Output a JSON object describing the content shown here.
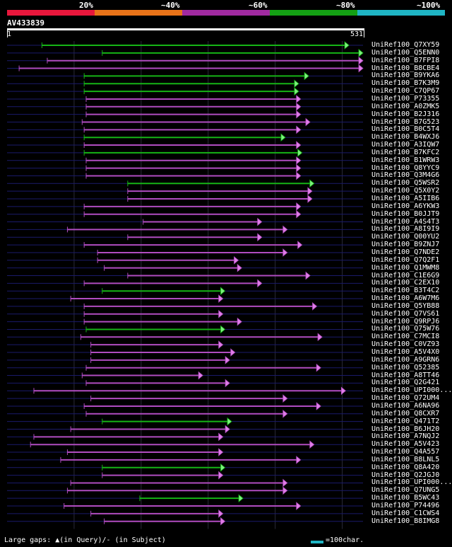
{
  "legend": [
    {
      "label": "20%",
      "color": "#e8173c"
    },
    {
      "label": "~40%",
      "color": "#e87319"
    },
    {
      "label": "~60%",
      "color": "#a02aa0"
    },
    {
      "label": "~80%",
      "color": "#14a014"
    },
    {
      "label": "~100%",
      "color": "#1fb5c4"
    }
  ],
  "query": {
    "title": "AV433839",
    "start": "1",
    "end": "531",
    "length": 531
  },
  "colors": {
    "purple": "#b04cc0",
    "green": "#16b416",
    "arrow_purple": "#e07ee8",
    "arrow_green": "#7ef07e",
    "grid": "#2a2a3a",
    "backbone": "#1a1a6a"
  },
  "hits": [
    {
      "name": "UniRef100_Q7XY59",
      "start": 52,
      "end": 510,
      "color": "green"
    },
    {
      "name": "UniRef100_Q5ENN0",
      "start": 142,
      "end": 531,
      "color": "green"
    },
    {
      "name": "UniRef100_B7FPI8",
      "start": 60,
      "end": 531,
      "color": "purple"
    },
    {
      "name": "UniRef100_B8CBE4",
      "start": 18,
      "end": 531,
      "color": "purple"
    },
    {
      "name": "UniRef100_B9YKA6",
      "start": 115,
      "end": 450,
      "color": "green"
    },
    {
      "name": "UniRef100_B7K3M9",
      "start": 115,
      "end": 435,
      "color": "green"
    },
    {
      "name": "UniRef100_C7QP67",
      "start": 115,
      "end": 435,
      "color": "green"
    },
    {
      "name": "UniRef100_P73355",
      "start": 118,
      "end": 438,
      "color": "purple"
    },
    {
      "name": "UniRef100_A0ZMK5",
      "start": 118,
      "end": 438,
      "color": "purple"
    },
    {
      "name": "UniRef100_B2J316",
      "start": 118,
      "end": 438,
      "color": "purple"
    },
    {
      "name": "UniRef100_B7G523",
      "start": 112,
      "end": 452,
      "color": "purple"
    },
    {
      "name": "UniRef100_B0C5T4",
      "start": 115,
      "end": 438,
      "color": "purple"
    },
    {
      "name": "UniRef100_B4WXJ6",
      "start": 115,
      "end": 415,
      "color": "green"
    },
    {
      "name": "UniRef100_A3IQW7",
      "start": 115,
      "end": 438,
      "color": "purple"
    },
    {
      "name": "UniRef100_B7KFC2",
      "start": 115,
      "end": 440,
      "color": "green"
    },
    {
      "name": "UniRef100_B1WRW3",
      "start": 118,
      "end": 438,
      "color": "purple"
    },
    {
      "name": "UniRef100_Q8YYC9",
      "start": 118,
      "end": 438,
      "color": "purple"
    },
    {
      "name": "UniRef100_Q3M4G6",
      "start": 118,
      "end": 438,
      "color": "purple"
    },
    {
      "name": "UniRef100_Q5WSR2",
      "start": 180,
      "end": 458,
      "color": "green"
    },
    {
      "name": "UniRef100_Q5X0Y2",
      "start": 180,
      "end": 455,
      "color": "purple"
    },
    {
      "name": "UniRef100_A5IIB6",
      "start": 180,
      "end": 455,
      "color": "purple"
    },
    {
      "name": "UniRef100_A6YKW3",
      "start": 115,
      "end": 438,
      "color": "purple"
    },
    {
      "name": "UniRef100_B0JJT9",
      "start": 115,
      "end": 438,
      "color": "purple"
    },
    {
      "name": "UniRef100_A4S4T3",
      "start": 203,
      "end": 380,
      "color": "purple"
    },
    {
      "name": "UniRef100_A8I9I9",
      "start": 90,
      "end": 418,
      "color": "purple"
    },
    {
      "name": "UniRef100_Q00YU2",
      "start": 180,
      "end": 380,
      "color": "purple"
    },
    {
      "name": "UniRef100_B9ZNJ7",
      "start": 115,
      "end": 440,
      "color": "purple"
    },
    {
      "name": "UniRef100_Q7NDE2",
      "start": 135,
      "end": 418,
      "color": "purple"
    },
    {
      "name": "UniRef100_Q7Q2F1",
      "start": 135,
      "end": 345,
      "color": "purple"
    },
    {
      "name": "UniRef100_Q1MWM8",
      "start": 145,
      "end": 350,
      "color": "purple"
    },
    {
      "name": "UniRef100_C1E6G9",
      "start": 180,
      "end": 452,
      "color": "purple"
    },
    {
      "name": "UniRef100_C2EX10",
      "start": 115,
      "end": 380,
      "color": "purple"
    },
    {
      "name": "UniRef100_B3T4C2",
      "start": 142,
      "end": 325,
      "color": "green"
    },
    {
      "name": "UniRef100_A6W7M6",
      "start": 95,
      "end": 322,
      "color": "purple"
    },
    {
      "name": "UniRef100_Q5YB88",
      "start": 115,
      "end": 462,
      "color": "purple"
    },
    {
      "name": "UniRef100_Q7VS61",
      "start": 115,
      "end": 322,
      "color": "purple"
    },
    {
      "name": "UniRef100_Q9RPJ6",
      "start": 115,
      "end": 350,
      "color": "purple"
    },
    {
      "name": "UniRef100_Q75W76",
      "start": 118,
      "end": 325,
      "color": "green"
    },
    {
      "name": "UniRef100_C7MCI8",
      "start": 110,
      "end": 470,
      "color": "purple"
    },
    {
      "name": "UniRef100_C0VZ93",
      "start": 125,
      "end": 322,
      "color": "purple"
    },
    {
      "name": "UniRef100_A5V4X0",
      "start": 125,
      "end": 340,
      "color": "purple"
    },
    {
      "name": "UniRef100_A9GRN6",
      "start": 125,
      "end": 332,
      "color": "purple"
    },
    {
      "name": "UniRef100_Q52385",
      "start": 118,
      "end": 468,
      "color": "purple"
    },
    {
      "name": "UniRef100_A8TT46",
      "start": 112,
      "end": 292,
      "color": "purple"
    },
    {
      "name": "UniRef100_Q2G421",
      "start": 118,
      "end": 332,
      "color": "purple"
    },
    {
      "name": "UniRef100_UPI000...",
      "start": 40,
      "end": 505,
      "color": "purple"
    },
    {
      "name": "UniRef100_Q72UM4",
      "start": 125,
      "end": 418,
      "color": "purple"
    },
    {
      "name": "UniRef100_A6NA96",
      "start": 115,
      "end": 468,
      "color": "purple"
    },
    {
      "name": "UniRef100_Q8CXR7",
      "start": 118,
      "end": 418,
      "color": "purple"
    },
    {
      "name": "UniRef100_Q471T2",
      "start": 142,
      "end": 335,
      "color": "green"
    },
    {
      "name": "UniRef100_B6JH20",
      "start": 95,
      "end": 332,
      "color": "purple"
    },
    {
      "name": "UniRef100_A7NQJ2",
      "start": 40,
      "end": 322,
      "color": "purple"
    },
    {
      "name": "UniRef100_A5V423",
      "start": 35,
      "end": 458,
      "color": "purple"
    },
    {
      "name": "UniRef100_Q4A557",
      "start": 90,
      "end": 322,
      "color": "purple"
    },
    {
      "name": "UniRef100_B8LNL5",
      "start": 80,
      "end": 438,
      "color": "purple"
    },
    {
      "name": "UniRef100_Q8A420",
      "start": 142,
      "end": 325,
      "color": "green"
    },
    {
      "name": "UniRef100_Q2JGJ0",
      "start": 142,
      "end": 322,
      "color": "purple"
    },
    {
      "name": "UniRef100_UPI000...",
      "start": 95,
      "end": 418,
      "color": "purple"
    },
    {
      "name": "UniRef100_Q7UNG5",
      "start": 90,
      "end": 418,
      "color": "purple"
    },
    {
      "name": "UniRef100_B5WC43",
      "start": 198,
      "end": 352,
      "color": "green"
    },
    {
      "name": "UniRef100_P74496",
      "start": 85,
      "end": 438,
      "color": "purple"
    },
    {
      "name": "UniRef100_C1CWS4",
      "start": 125,
      "end": 322,
      "color": "purple"
    },
    {
      "name": "UniRef100_B8IMG8",
      "start": 145,
      "end": 325,
      "color": "purple"
    }
  ],
  "footer": {
    "gaps_text": "Large gaps: ▲(in Query)/- (in Subject)",
    "scale_text": "=100char."
  }
}
